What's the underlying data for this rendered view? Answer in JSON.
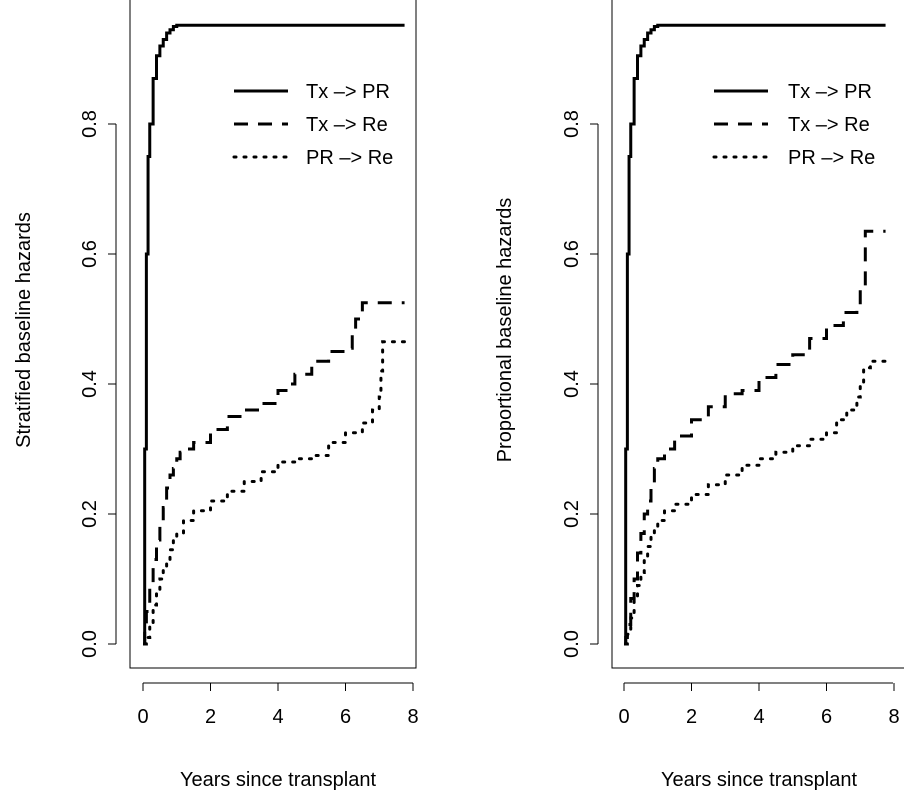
{
  "chart_data": [
    {
      "type": "line",
      "title": "",
      "xlabel": "Years since transplant",
      "ylabel": "Stratified baseline hazards",
      "xlim": [
        0,
        8
      ],
      "ylim": [
        0,
        0.95
      ],
      "x_ticks": [
        "0",
        "2",
        "4",
        "6",
        "8"
      ],
      "y_ticks": [
        "0.0",
        "0.2",
        "0.4",
        "0.6",
        "0.8"
      ],
      "grid": false,
      "legend": {
        "placement": "top-right",
        "entries": [
          "Tx –> PR",
          "Tx –> Re",
          "PR –> Re"
        ]
      },
      "series": [
        {
          "name": "Tx –> PR",
          "style": "solid",
          "x": [
            0,
            0.05,
            0.1,
            0.15,
            0.2,
            0.3,
            0.4,
            0.5,
            0.6,
            0.7,
            0.8,
            0.9,
            1.0,
            1.1,
            2,
            4,
            6,
            7.75
          ],
          "y": [
            0,
            0.3,
            0.6,
            0.75,
            0.8,
            0.87,
            0.905,
            0.92,
            0.93,
            0.94,
            0.945,
            0.95,
            0.952,
            0.952,
            0.952,
            0.952,
            0.952,
            0.952
          ]
        },
        {
          "name": "Tx –> Re",
          "style": "dashed",
          "x": [
            0,
            0.05,
            0.1,
            0.2,
            0.3,
            0.4,
            0.5,
            0.6,
            0.7,
            0.8,
            0.9,
            1.0,
            1.1,
            1.3,
            1.5,
            2.0,
            2.5,
            3.0,
            3.5,
            4.0,
            4.3,
            4.5,
            5.0,
            5.5,
            6.0,
            6.2,
            6.3,
            6.5,
            7.0,
            7.75
          ],
          "y": [
            0,
            0.02,
            0.05,
            0.09,
            0.13,
            0.16,
            0.19,
            0.21,
            0.24,
            0.26,
            0.27,
            0.285,
            0.295,
            0.3,
            0.31,
            0.33,
            0.35,
            0.36,
            0.37,
            0.39,
            0.4,
            0.415,
            0.435,
            0.45,
            0.455,
            0.48,
            0.5,
            0.525,
            0.525,
            0.525
          ]
        },
        {
          "name": "PR –> Re",
          "style": "dotted",
          "x": [
            0.05,
            0.1,
            0.2,
            0.3,
            0.4,
            0.5,
            0.6,
            0.7,
            0.8,
            0.9,
            1.0,
            1.2,
            1.5,
            2.0,
            2.5,
            3.0,
            3.5,
            4.0,
            4.5,
            5.0,
            5.5,
            6.0,
            6.5,
            6.8,
            7.0,
            7.05,
            7.1,
            7.75
          ],
          "y": [
            0,
            0.01,
            0.03,
            0.06,
            0.08,
            0.1,
            0.12,
            0.13,
            0.145,
            0.16,
            0.17,
            0.19,
            0.205,
            0.22,
            0.235,
            0.25,
            0.265,
            0.28,
            0.285,
            0.29,
            0.31,
            0.325,
            0.34,
            0.36,
            0.38,
            0.42,
            0.465,
            0.465
          ]
        }
      ]
    },
    {
      "type": "line",
      "title": "",
      "xlabel": "Years since transplant",
      "ylabel": "Proportional baseline hazards",
      "xlim": [
        0,
        8
      ],
      "ylim": [
        0,
        0.95
      ],
      "x_ticks": [
        "0",
        "2",
        "4",
        "6",
        "8"
      ],
      "y_ticks": [
        "0.0",
        "0.2",
        "0.4",
        "0.6",
        "0.8"
      ],
      "grid": false,
      "legend": {
        "placement": "top-right",
        "entries": [
          "Tx –> PR",
          "Tx –> Re",
          "PR –> Re"
        ]
      },
      "series": [
        {
          "name": "Tx –> PR",
          "style": "solid",
          "x": [
            0,
            0.05,
            0.1,
            0.15,
            0.2,
            0.3,
            0.4,
            0.5,
            0.6,
            0.7,
            0.8,
            0.9,
            1.0,
            1.1,
            2,
            4,
            6,
            7.75
          ],
          "y": [
            0,
            0.3,
            0.6,
            0.75,
            0.8,
            0.87,
            0.905,
            0.92,
            0.93,
            0.94,
            0.945,
            0.95,
            0.952,
            0.952,
            0.952,
            0.952,
            0.952,
            0.952
          ]
        },
        {
          "name": "Tx –> Re",
          "style": "dashed",
          "x": [
            0,
            0.05,
            0.1,
            0.2,
            0.3,
            0.4,
            0.5,
            0.6,
            0.7,
            0.8,
            0.9,
            1.0,
            1.2,
            1.5,
            2.0,
            2.5,
            3.0,
            3.5,
            4.0,
            4.5,
            5.0,
            5.5,
            6.0,
            6.5,
            6.9,
            7.0,
            7.1,
            7.15,
            7.75
          ],
          "y": [
            0,
            0.01,
            0.03,
            0.07,
            0.1,
            0.14,
            0.17,
            0.2,
            0.22,
            0.24,
            0.27,
            0.285,
            0.3,
            0.32,
            0.345,
            0.365,
            0.385,
            0.39,
            0.41,
            0.43,
            0.445,
            0.47,
            0.49,
            0.51,
            0.525,
            0.545,
            0.55,
            0.635,
            0.635
          ]
        },
        {
          "name": "PR –> Re",
          "style": "dotted",
          "x": [
            0.05,
            0.1,
            0.2,
            0.3,
            0.4,
            0.5,
            0.6,
            0.7,
            0.8,
            0.9,
            1.0,
            1.2,
            1.5,
            2.0,
            2.5,
            3.0,
            3.5,
            4.0,
            4.5,
            5.0,
            5.5,
            6.0,
            6.3,
            6.6,
            6.9,
            7.0,
            7.1,
            7.3,
            7.75
          ],
          "y": [
            0,
            0.015,
            0.04,
            0.07,
            0.09,
            0.11,
            0.13,
            0.15,
            0.165,
            0.18,
            0.19,
            0.205,
            0.215,
            0.23,
            0.245,
            0.26,
            0.275,
            0.285,
            0.295,
            0.305,
            0.315,
            0.325,
            0.345,
            0.36,
            0.38,
            0.4,
            0.425,
            0.435,
            0.435
          ]
        }
      ]
    }
  ]
}
